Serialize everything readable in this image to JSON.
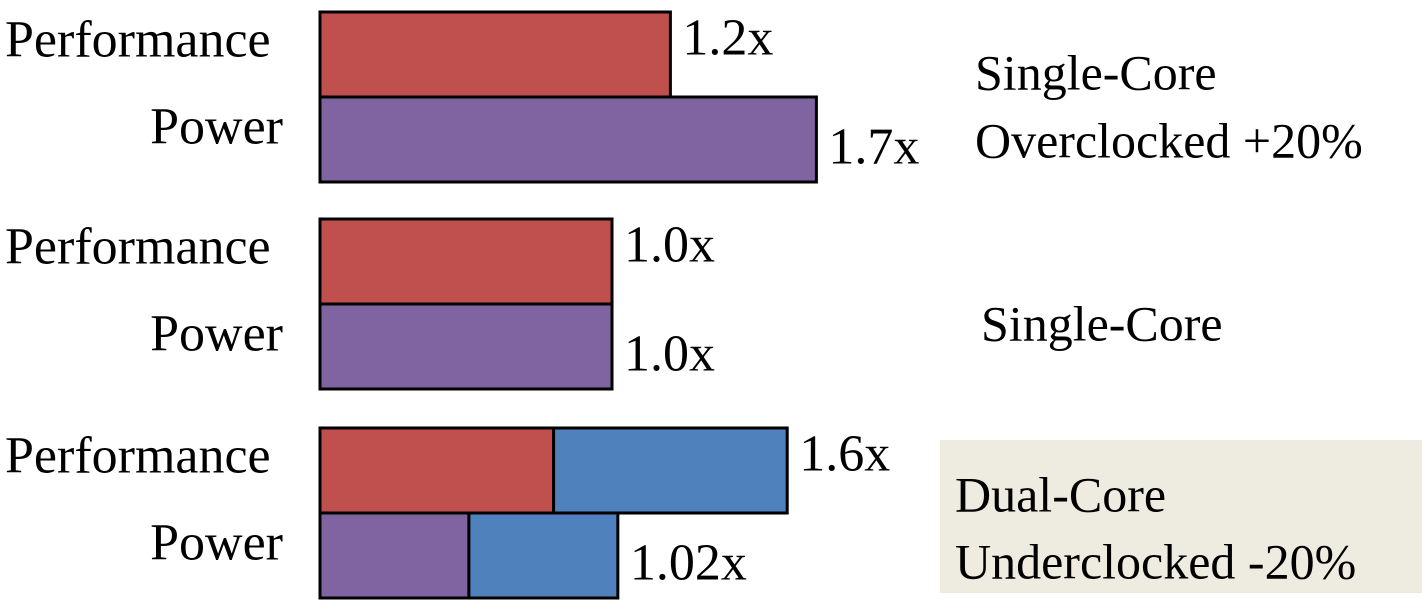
{
  "chart_data": {
    "type": "bar",
    "orientation": "horizontal",
    "stacked": true,
    "grid": false,
    "metrics": [
      "Performance",
      "Power"
    ],
    "groups": [
      {
        "label_lines": [
          "Single-Core",
          "Overclocked +20%"
        ],
        "highlighted": false,
        "bars": [
          {
            "metric": "Performance",
            "label": "1.2x",
            "segments": [
              1.2
            ]
          },
          {
            "metric": "Power",
            "label": "1.7x",
            "segments": [
              1.7
            ]
          }
        ]
      },
      {
        "label_lines": [
          "Single-Core"
        ],
        "highlighted": false,
        "bars": [
          {
            "metric": "Performance",
            "label": "1.0x",
            "segments": [
              1.0
            ]
          },
          {
            "metric": "Power",
            "label": "1.0x",
            "segments": [
              1.0
            ]
          }
        ]
      },
      {
        "label_lines": [
          "Dual-Core",
          "Underclocked -20%"
        ],
        "highlighted": true,
        "bars": [
          {
            "metric": "Performance",
            "label": "1.6x",
            "segments": [
              0.8,
              0.8
            ]
          },
          {
            "metric": "Power",
            "label": "1.02x",
            "segments": [
              0.51,
              0.51
            ]
          }
        ]
      }
    ]
  },
  "colors": {
    "performance": "#c0504d",
    "power": "#8064a2",
    "second_core": "#4f81bd",
    "highlight_box": "#eeebe0",
    "outline": "#000000"
  }
}
